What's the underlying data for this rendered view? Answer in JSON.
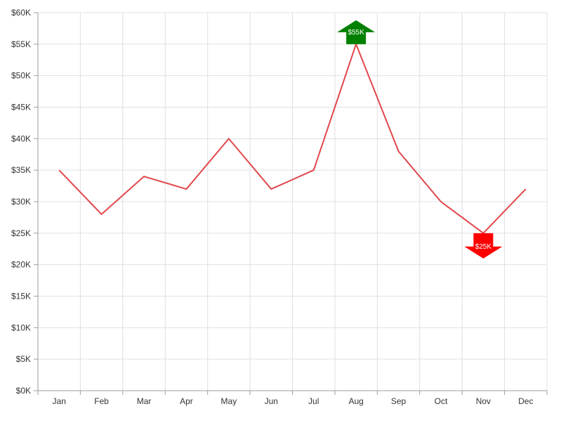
{
  "chart_data": {
    "type": "line",
    "categories": [
      "Jan",
      "Feb",
      "Mar",
      "Apr",
      "May",
      "Jun",
      "Jul",
      "Aug",
      "Sep",
      "Oct",
      "Nov",
      "Dec"
    ],
    "series": [
      {
        "values": [
          35000,
          28000,
          34000,
          32000,
          40000,
          32000,
          35000,
          55000,
          38000,
          30000,
          25000,
          32000
        ],
        "color": "#e0474c"
      }
    ],
    "ylim": [
      0,
      60000
    ],
    "y_ticks": [
      0,
      5000,
      10000,
      15000,
      20000,
      25000,
      30000,
      35000,
      40000,
      45000,
      50000,
      55000,
      60000
    ],
    "y_tick_labels": [
      "$0K",
      "$5K",
      "$10K",
      "$15K",
      "$20K",
      "$25K",
      "$30K",
      "$35K",
      "$40K",
      "$45K",
      "$50K",
      "$55K",
      "$60K"
    ],
    "grid": true,
    "title": "",
    "xlabel": "",
    "ylabel": "",
    "annotations": [
      {
        "category": "Aug",
        "value": 55000,
        "label": "$55K",
        "direction": "up",
        "color": "#008000"
      },
      {
        "category": "Nov",
        "value": 25000,
        "label": "$25K",
        "direction": "down",
        "color": "#ff0000"
      }
    ]
  },
  "colors": {
    "grid": "#e0e0e0",
    "axis": "#9e9e9e",
    "text": "#333333"
  }
}
